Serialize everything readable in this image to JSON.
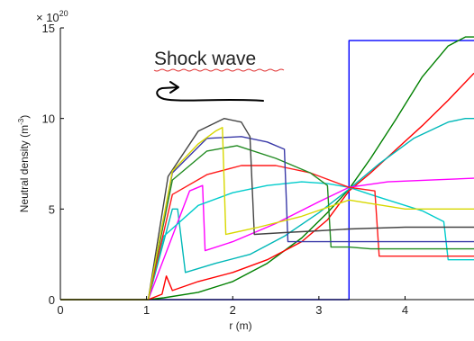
{
  "chart_data": {
    "type": "line",
    "title": "",
    "xlabel": "r (m)",
    "ylabel_prefix": "Neutral density (m",
    "ylabel_exponent": "-3",
    "ylabel_suffix": ")",
    "xlim": [
      0,
      4.8
    ],
    "ylim": [
      0,
      15
    ],
    "xticks": [
      "0",
      "1",
      "2",
      "3",
      "4"
    ],
    "yticks": [
      "0",
      "5",
      "10",
      "15"
    ],
    "y_multiplier_base": "× 10",
    "y_multiplier_exponent": "20",
    "grid": false,
    "legend": "none",
    "annotations": [
      {
        "text": "Shock wave",
        "arrow": "curved, pointing left"
      }
    ],
    "series": [
      {
        "color": "#0000ff",
        "x": [
          0,
          3.35,
          3.35,
          3.35,
          4.8
        ],
        "y": [
          0,
          0,
          0,
          14.3,
          14.3
        ]
      },
      {
        "color": "#008000",
        "x": [
          0,
          1.02,
          1.2,
          1.6,
          2.0,
          2.4,
          2.8,
          3.1,
          3.35,
          3.6,
          3.9,
          4.2,
          4.5,
          4.7,
          4.8
        ],
        "y": [
          0,
          0,
          0.1,
          0.4,
          1.0,
          2.0,
          3.4,
          4.8,
          6.1,
          7.8,
          10.0,
          12.3,
          14.0,
          14.5,
          14.5
        ]
      },
      {
        "color": "#ff0000",
        "x": [
          0,
          1.02,
          1.18,
          1.23,
          1.3,
          1.6,
          2.0,
          2.4,
          2.8,
          3.1,
          3.35,
          3.6,
          3.9,
          4.2,
          4.5,
          4.8
        ],
        "y": [
          0,
          0,
          0.3,
          1.3,
          0.5,
          1.0,
          1.5,
          2.2,
          3.2,
          4.4,
          6.0,
          7.0,
          8.3,
          9.6,
          11.0,
          12.5
        ]
      },
      {
        "color": "#00b8b8",
        "x": [
          0,
          1.02,
          1.3,
          1.36,
          1.45,
          1.8,
          2.2,
          2.6,
          3.0,
          3.35,
          3.7,
          4.1,
          4.5,
          4.7,
          4.8
        ],
        "y": [
          0,
          0,
          5.0,
          5.0,
          1.5,
          2.0,
          2.5,
          3.5,
          4.8,
          6.1,
          7.5,
          8.9,
          9.8,
          10.0,
          10.0
        ]
      },
      {
        "color": "#ff00ff",
        "x": [
          0,
          1.02,
          1.5,
          1.65,
          1.68,
          2.0,
          2.5,
          3.0,
          3.35,
          3.8,
          4.3,
          4.8
        ],
        "y": [
          0,
          0,
          6.0,
          6.3,
          2.7,
          3.2,
          4.2,
          5.4,
          6.2,
          6.5,
          6.6,
          6.7
        ]
      },
      {
        "color": "#00cccc",
        "x": [
          0,
          1.02,
          1.2,
          1.6,
          2.0,
          2.4,
          2.8,
          3.1,
          3.35,
          3.6,
          3.8,
          4.2,
          4.45,
          4.5,
          4.8
        ],
        "y": [
          0,
          0,
          3.5,
          5.2,
          5.9,
          6.3,
          6.5,
          6.4,
          6.2,
          5.8,
          5.5,
          4.9,
          4.3,
          2.2,
          2.2
        ]
      },
      {
        "color": "#ff1a1a",
        "x": [
          0,
          1.02,
          1.3,
          1.7,
          2.1,
          2.5,
          2.9,
          3.35,
          3.65,
          3.7,
          4.8
        ],
        "y": [
          0,
          0,
          5.8,
          6.9,
          7.4,
          7.4,
          7.0,
          6.2,
          6.0,
          2.4,
          2.4
        ]
      },
      {
        "color": "#228b22",
        "x": [
          0,
          1.02,
          1.3,
          1.7,
          2.05,
          2.5,
          2.9,
          3.1,
          3.14,
          3.35,
          3.6,
          4.0,
          4.8
        ],
        "y": [
          0,
          0,
          6.6,
          8.2,
          8.5,
          7.8,
          7.0,
          6.3,
          2.9,
          2.9,
          2.8,
          2.8,
          2.8
        ]
      },
      {
        "color": "#3a3aa8",
        "x": [
          0,
          1.02,
          1.3,
          1.7,
          2.1,
          2.4,
          2.6,
          2.64,
          3.0,
          3.35,
          4.0,
          4.8
        ],
        "y": [
          0,
          0,
          7.0,
          8.9,
          9.0,
          8.7,
          8.3,
          3.2,
          3.2,
          3.2,
          3.2,
          3.2
        ]
      },
      {
        "color": "#444444",
        "x": [
          0,
          1.02,
          1.25,
          1.6,
          1.9,
          2.1,
          2.2,
          2.25,
          2.6,
          3.0,
          3.35,
          4.0,
          4.8
        ],
        "y": [
          0,
          0,
          6.8,
          9.3,
          10.0,
          9.8,
          9.0,
          3.6,
          3.7,
          3.8,
          3.9,
          4.0,
          4.0
        ]
      },
      {
        "color": "#d8d800",
        "x": [
          0,
          1.02,
          1.3,
          1.6,
          1.8,
          1.88,
          1.92,
          2.3,
          2.8,
          3.35,
          4.0,
          4.8
        ],
        "y": [
          0,
          0,
          7.1,
          8.6,
          9.3,
          9.5,
          3.6,
          4.0,
          4.6,
          5.5,
          5.0,
          5.0
        ]
      }
    ]
  }
}
